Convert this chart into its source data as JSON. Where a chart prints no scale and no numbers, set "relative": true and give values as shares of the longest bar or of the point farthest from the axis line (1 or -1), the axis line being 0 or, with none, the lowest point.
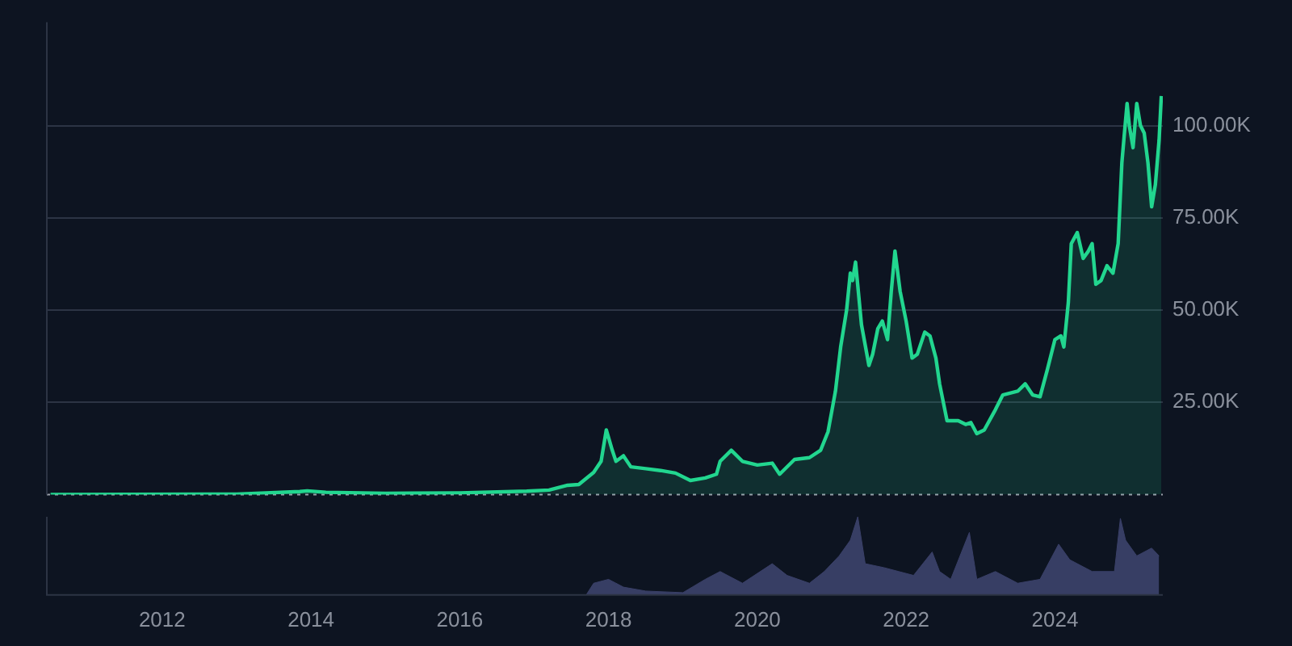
{
  "chart_data": [
    {
      "type": "area",
      "xlim": [
        2010.45,
        2025.45
      ],
      "ylim": [
        0,
        128000
      ],
      "yticks": [
        {
          "value": 25000,
          "label": "25.00K"
        },
        {
          "value": 50000,
          "label": "50.00K"
        },
        {
          "value": 75000,
          "label": "75.00K"
        },
        {
          "value": 100000,
          "label": "100.00K"
        }
      ],
      "grid": "y",
      "tick_labels": "y",
      "marker": "none",
      "ref_lines": [
        {
          "axis": "y",
          "value": 0,
          "color": "#9aa0aa",
          "line_style": "dotted"
        }
      ],
      "series": [
        {
          "color": "#22d68f",
          "x": [
            2010.5,
            2013.0,
            2013.85,
            2013.95,
            2014.2,
            2015.0,
            2016.0,
            2016.9,
            2017.2,
            2017.45,
            2017.6,
            2017.8,
            2017.9,
            2017.97,
            2018.05,
            2018.1,
            2018.2,
            2018.3,
            2018.5,
            2018.7,
            2018.9,
            2019.1,
            2019.3,
            2019.45,
            2019.5,
            2019.65,
            2019.8,
            2020.0,
            2020.2,
            2020.3,
            2020.5,
            2020.7,
            2020.85,
            2020.95,
            2021.05,
            2021.12,
            2021.2,
            2021.25,
            2021.28,
            2021.32,
            2021.4,
            2021.5,
            2021.55,
            2021.62,
            2021.68,
            2021.75,
            2021.8,
            2021.85,
            2021.92,
            2022.0,
            2022.08,
            2022.15,
            2022.25,
            2022.32,
            2022.4,
            2022.45,
            2022.55,
            2022.7,
            2022.8,
            2022.87,
            2022.95,
            2023.05,
            2023.2,
            2023.3,
            2023.5,
            2023.6,
            2023.7,
            2023.8,
            2023.9,
            2024.0,
            2024.08,
            2024.12,
            2024.18,
            2024.22,
            2024.3,
            2024.38,
            2024.45,
            2024.5,
            2024.55,
            2024.62,
            2024.7,
            2024.78,
            2024.85,
            2024.9,
            2024.93,
            2024.97,
            2025.0,
            2025.05,
            2025.1,
            2025.15,
            2025.2,
            2025.25,
            2025.3,
            2025.35,
            2025.4,
            2025.43
          ],
          "values": [
            0,
            100,
            800,
            1000,
            600,
            300,
            450,
            900,
            1200,
            2500,
            2700,
            6000,
            9000,
            17500,
            12000,
            9000,
            10500,
            7500,
            7000,
            6500,
            5800,
            3800,
            4500,
            5500,
            9000,
            12000,
            9000,
            8000,
            8500,
            5500,
            9500,
            10000,
            12000,
            17000,
            28000,
            40000,
            50000,
            60000,
            58000,
            63000,
            46000,
            35000,
            38000,
            45000,
            47000,
            42000,
            55000,
            66000,
            55000,
            47000,
            37000,
            38000,
            44000,
            43000,
            37000,
            30000,
            20000,
            20000,
            19000,
            19500,
            16500,
            17500,
            23000,
            27000,
            28000,
            30000,
            27000,
            26500,
            34000,
            42000,
            43000,
            40000,
            52000,
            68000,
            71000,
            64000,
            66000,
            68000,
            57000,
            58000,
            62000,
            60000,
            68000,
            90000,
            97000,
            106000,
            100000,
            94000,
            106000,
            100000,
            98000,
            90000,
            78000,
            84000,
            96000,
            108000
          ]
        }
      ]
    },
    {
      "type": "area",
      "relative": true,
      "xlim": [
        2010.45,
        2025.45
      ],
      "xticks": [
        2012,
        2014,
        2016,
        2018,
        2020,
        2022,
        2024
      ],
      "tick_labels": "x",
      "series": [
        {
          "color": "#3a4068",
          "x": [
            2010.5,
            2017.7,
            2017.8,
            2018.0,
            2018.2,
            2018.5,
            2019.0,
            2019.3,
            2019.5,
            2019.8,
            2020.2,
            2020.4,
            2020.7,
            2020.9,
            2021.1,
            2021.25,
            2021.35,
            2021.45,
            2021.7,
            2021.9,
            2022.1,
            2022.35,
            2022.45,
            2022.6,
            2022.85,
            2022.95,
            2023.2,
            2023.5,
            2023.8,
            2024.05,
            2024.2,
            2024.5,
            2024.8,
            2024.88,
            2024.95,
            2025.1,
            2025.3,
            2025.4
          ],
          "values": [
            0,
            0,
            0.15,
            0.2,
            0.1,
            0.05,
            0.03,
            0.2,
            0.3,
            0.15,
            0.4,
            0.25,
            0.15,
            0.3,
            0.5,
            0.7,
            1.0,
            0.4,
            0.35,
            0.3,
            0.25,
            0.55,
            0.3,
            0.2,
            0.8,
            0.2,
            0.3,
            0.15,
            0.2,
            0.65,
            0.45,
            0.3,
            0.3,
            0.98,
            0.7,
            0.5,
            0.6,
            0.5
          ]
        }
      ]
    }
  ]
}
